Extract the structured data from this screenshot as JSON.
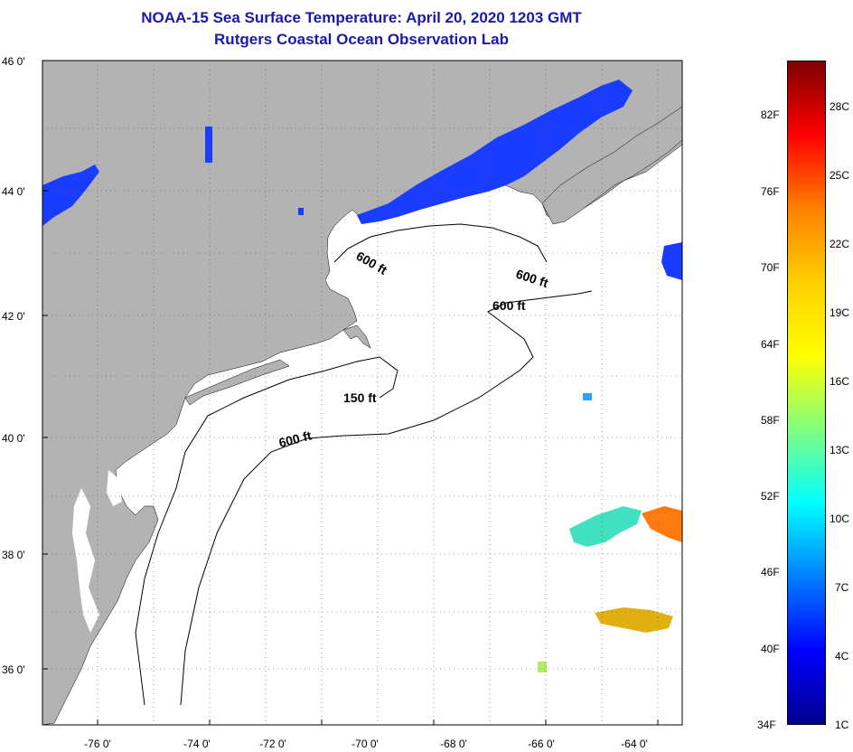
{
  "header": {
    "title_line1": "NOAA-15 Sea Surface Temperature:  April 20, 2020 1203 GMT",
    "title_line2": "Rutgers Coastal Ocean Observation Lab"
  },
  "map": {
    "lat_labels": [
      "46 0'",
      "44 0'",
      "42 0'",
      "40 0'",
      "38 0'",
      "36 0'"
    ],
    "lon_labels": [
      "-76 0'",
      "-74 0'",
      "-72 0'",
      "-70 0'",
      "-68 0'",
      "-66 0'",
      "-64 0'"
    ],
    "contour_labels": [
      "600 ft",
      "600 ft",
      "600 ft",
      "150 ft",
      "600 ft"
    ],
    "land_color": "#b3b3b3",
    "ocean_color": "#ffffff"
  },
  "colorbar": {
    "fahrenheit": [
      "82F",
      "76F",
      "70F",
      "64F",
      "58F",
      "52F",
      "46F",
      "40F",
      "34F"
    ],
    "celsius": [
      "28C",
      "25C",
      "22C",
      "19C",
      "16C",
      "13C",
      "10C",
      "7C",
      "4C",
      "1C"
    ],
    "gradient": [
      "#7f0000",
      "#ff0000",
      "#ff8000",
      "#ffd000",
      "#ffff00",
      "#80ff80",
      "#00ffff",
      "#0080ff",
      "#0000ff",
      "#00008f"
    ]
  }
}
